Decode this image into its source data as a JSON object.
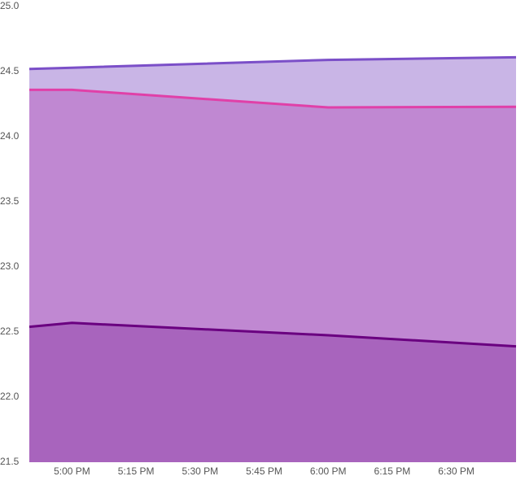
{
  "chart_data": {
    "type": "area",
    "x": [
      "16:50",
      "17:00",
      "18:00",
      "18:44"
    ],
    "xlim": [
      "16:50",
      "18:44"
    ],
    "xticks": [
      {
        "value": "17:00",
        "label": "5:00 PM"
      },
      {
        "value": "17:15",
        "label": "5:15 PM"
      },
      {
        "value": "17:30",
        "label": "5:30 PM"
      },
      {
        "value": "17:45",
        "label": "5:45 PM"
      },
      {
        "value": "18:00",
        "label": "6:00 PM"
      },
      {
        "value": "18:15",
        "label": "6:15 PM"
      },
      {
        "value": "18:30",
        "label": "6:30 PM"
      }
    ],
    "ylim": [
      21.5,
      25.0
    ],
    "yticks": [
      21.5,
      {
        "value": 22.0,
        "label": "22.0"
      },
      22.5,
      {
        "value": 23.0,
        "label": "23.0"
      },
      23.5,
      {
        "value": 24.0,
        "label": "24.0"
      },
      24.5,
      {
        "value": 25.0,
        "label": "25.0"
      }
    ],
    "series": [
      {
        "color": "#7b4fc8",
        "fill": "#c9b5e6",
        "values": [
          24.52,
          24.53,
          24.59,
          24.61
        ]
      },
      {
        "color": "#e040a8",
        "fill": "#c088d2",
        "values": [
          24.36,
          24.36,
          24.225,
          24.23
        ]
      },
      {
        "color": "#6a0080",
        "fill": "#a864bd",
        "values": [
          22.54,
          22.57,
          22.475,
          22.39
        ]
      }
    ]
  }
}
